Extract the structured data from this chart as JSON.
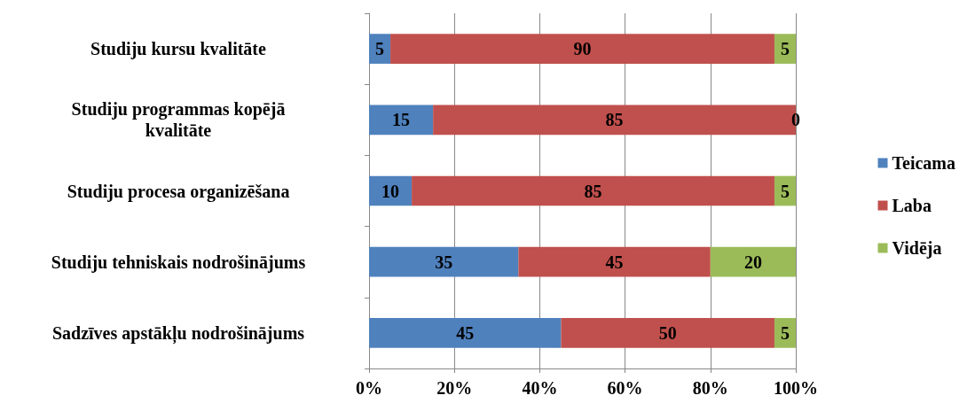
{
  "chart_data": {
    "type": "bar",
    "orientation": "horizontal",
    "stacked": true,
    "categories": [
      "Studiju kursu kvalitāte",
      "Studiju programmas kopējā\nkvalitāte",
      "Studiju procesa organizēšana",
      "Studiju tehniskais nodrošinājums",
      "Sadzīves apstākļu nodrošinājums"
    ],
    "series": [
      {
        "name": "Teicama",
        "color": "#4f81bd",
        "values": [
          5,
          15,
          10,
          35,
          45
        ]
      },
      {
        "name": "Laba",
        "color": "#c0504d",
        "values": [
          90,
          85,
          85,
          45,
          50
        ]
      },
      {
        "name": "Vidēja",
        "color": "#9bbb59",
        "values": [
          5,
          0,
          5,
          20,
          5
        ]
      }
    ],
    "xlim": [
      0,
      100
    ],
    "xticks": [
      {
        "value": 0,
        "label": "0%"
      },
      {
        "value": 20,
        "label": "20%"
      },
      {
        "value": 40,
        "label": "40%"
      },
      {
        "value": 60,
        "label": "60%"
      },
      {
        "value": 80,
        "label": "80%"
      },
      {
        "value": 100,
        "label": "100%"
      }
    ],
    "grid": "x",
    "legend": "right",
    "data_labels": true
  }
}
